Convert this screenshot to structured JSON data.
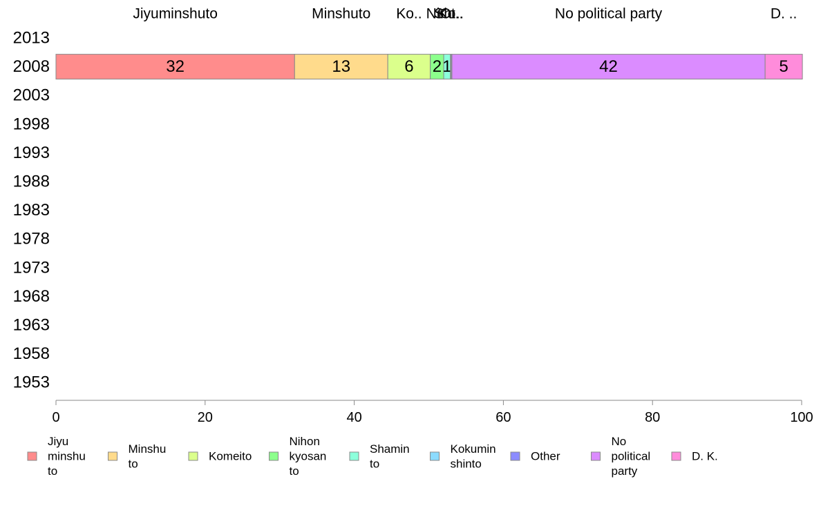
{
  "chart_data": {
    "type": "bar",
    "orientation": "horizontal",
    "stacked": true,
    "categories": [
      "2013",
      "2008",
      "2003",
      "1998",
      "1993",
      "1988",
      "1983",
      "1978",
      "1973",
      "1968",
      "1963",
      "1958",
      "1953"
    ],
    "xlim": [
      0,
      100
    ],
    "x_ticks": [
      "0",
      "20",
      "40",
      "60",
      "80",
      "100"
    ],
    "grid": false,
    "legend_position": "bottom",
    "top_labels": [
      "Jiyuminshuto",
      "Minshuto",
      "Ko..",
      "Ni..",
      "Sh..",
      "Ko..",
      "Ot..",
      "No political party",
      "D. .."
    ],
    "series": [
      {
        "name": "Jiyu minshu to",
        "legend_lines": [
          "Jiyu",
          "minshu",
          "to"
        ],
        "color": "#ff8c8c",
        "values": {
          "2008": 32
        },
        "labels": {
          "2008": "32"
        }
      },
      {
        "name": "Minshu to",
        "legend_lines": [
          "Minshu",
          "to"
        ],
        "color": "#ffdb8c",
        "values": {
          "2008": 12.5
        },
        "labels": {
          "2008": "13"
        }
      },
      {
        "name": "Komeito",
        "legend_lines": [
          "Komeito"
        ],
        "color": "#dbff8c",
        "values": {
          "2008": 5.7
        },
        "labels": {
          "2008": "6"
        }
      },
      {
        "name": "Nihon kyosan to",
        "legend_lines": [
          "Nihon",
          "kyosan",
          "to"
        ],
        "color": "#8cff8c",
        "values": {
          "2008": 1.8
        },
        "labels": {
          "2008": "2"
        }
      },
      {
        "name": "Shamin to",
        "legend_lines": [
          "Shamin",
          "to"
        ],
        "color": "#8cffdb",
        "values": {
          "2008": 0.9
        },
        "labels": {
          "2008": "1"
        }
      },
      {
        "name": "Kokumin shinto",
        "legend_lines": [
          "Kokumin",
          "shinto"
        ],
        "color": "#8cdbff",
        "values": {
          "2008": 0.1
        },
        "labels": {
          "2008": ""
        }
      },
      {
        "name": "Other",
        "legend_lines": [
          "Other"
        ],
        "color": "#8c8cff",
        "values": {
          "2008": 0.1
        },
        "labels": {
          "2008": ""
        }
      },
      {
        "name": "No political party",
        "legend_lines": [
          "No",
          "political",
          "party"
        ],
        "color": "#db8cff",
        "values": {
          "2008": 42
        },
        "labels": {
          "2008": "42"
        }
      },
      {
        "name": "D. K.",
        "legend_lines": [
          "D. K."
        ],
        "color": "#ff8cdb",
        "values": {
          "2008": 5
        },
        "labels": {
          "2008": "5"
        }
      }
    ]
  }
}
